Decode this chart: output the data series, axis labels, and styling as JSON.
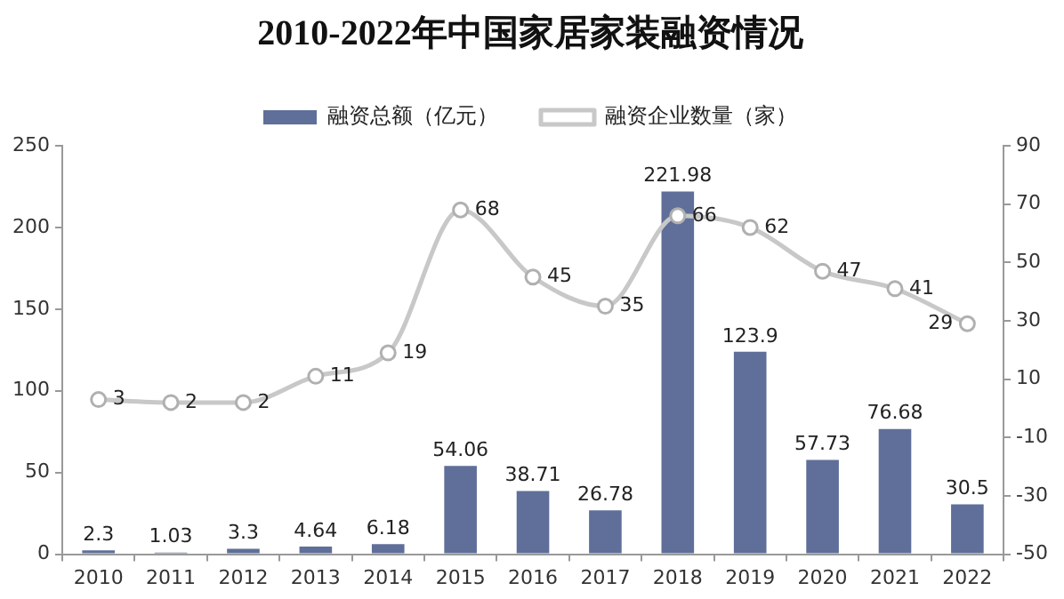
{
  "chart_data": {
    "type": "bar",
    "title": "2010-2022年中国家居家装融资情况",
    "categories": [
      "2010",
      "2011",
      "2012",
      "2013",
      "2014",
      "2015",
      "2016",
      "2017",
      "2018",
      "2019",
      "2020",
      "2021",
      "2022"
    ],
    "series": [
      {
        "name": "融资总额（亿元）",
        "color": "#5f6f99",
        "values": [
          2.3,
          1.03,
          3.3,
          4.64,
          6.18,
          54.06,
          38.71,
          26.78,
          221.98,
          123.9,
          57.73,
          76.68,
          30.5
        ]
      },
      {
        "name": "融资企业数量（家）",
        "type": "line",
        "axis": "y2",
        "color": "#c8c8c8",
        "marker": "circle",
        "values": [
          3,
          2,
          2,
          11,
          19,
          68,
          45,
          35,
          66,
          62,
          47,
          41,
          29
        ]
      }
    ],
    "ylim": [
      0,
      250
    ],
    "yticks": [
      0,
      50,
      100,
      150,
      200,
      250
    ],
    "y2lim": [
      -50,
      90
    ],
    "y2ticks": [
      -50,
      -30,
      -10,
      10,
      30,
      50,
      70,
      90
    ],
    "grid": false,
    "legend": "top",
    "data_labels": true
  }
}
